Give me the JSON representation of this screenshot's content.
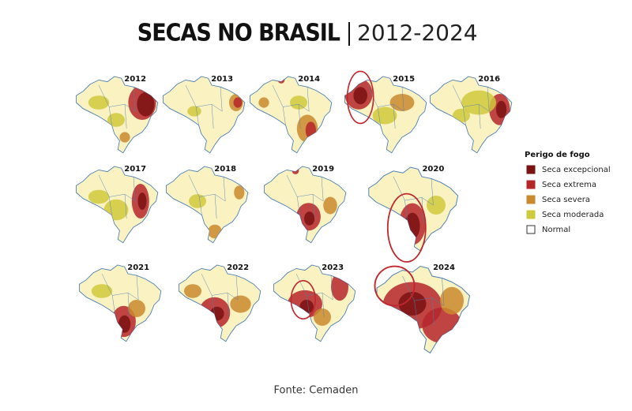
{
  "title": "SECAS NO BRASIL",
  "subtitle": "2012-2024",
  "maps": [
    {
      "year": "2012"
    },
    {
      "year": "2013"
    },
    {
      "year": "2014"
    },
    {
      "year": "2015"
    },
    {
      "year": "2016"
    },
    {
      "year": "2017"
    },
    {
      "year": "2018"
    },
    {
      "year": "2019"
    },
    {
      "year": "2020"
    },
    {
      "year": "2021"
    },
    {
      "year": "2022"
    },
    {
      "year": "2023"
    },
    {
      "year": "2024"
    }
  ],
  "legend": {
    "title": "Perigo de fogo",
    "items": [
      {
        "label": "Seca excepcional",
        "color": "#7a1212"
      },
      {
        "label": "Seca extrema",
        "color": "#b5262b"
      },
      {
        "label": "Seca severa",
        "color": "#c98a2e"
      },
      {
        "label": "Seca moderada",
        "color": "#cfc93c"
      },
      {
        "label": "Normal",
        "color": "#ffffff"
      }
    ]
  },
  "source": "Fonte: Cemaden"
}
